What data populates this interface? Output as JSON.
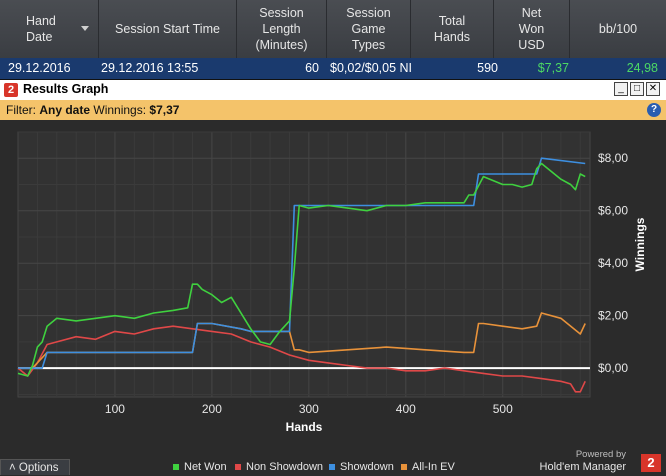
{
  "table": {
    "columns": [
      {
        "label": "Hand\nDate",
        "text": "Hand Date"
      },
      {
        "label": "Session Start Time"
      },
      {
        "label": "Session Length (Minutes)"
      },
      {
        "label": "Session Game Types"
      },
      {
        "label": "Total Hands"
      },
      {
        "label": "Net Won USD"
      },
      {
        "label": "bb/100"
      }
    ],
    "row": {
      "hand_date": "29.12.2016",
      "session_start": "29.12.2016 13:55",
      "session_length": "60",
      "game_types": "$0,02/$0,05 NI",
      "total_hands": "590",
      "net_won": "$7,37",
      "bb100": "24,98"
    }
  },
  "window": {
    "badge": "2",
    "title": "Results Graph",
    "btn_min": "_",
    "btn_max": "□",
    "btn_close": "✕"
  },
  "filter": {
    "label": "Filter:",
    "date_value": "Any date",
    "winnings_label": "Winnings:",
    "winnings_value": "$7,37",
    "help": "?"
  },
  "options_label": "Options",
  "powered": {
    "line1": "Powered by",
    "line2": "Hold'em Manager",
    "logo": "2"
  },
  "colors": {
    "net_won": "#3fd13f",
    "non_showdown": "#e04848",
    "showdown": "#3d8fe0",
    "all_in_ev": "#e8923a"
  },
  "chart_data": {
    "type": "line",
    "xlabel": "Hands",
    "ylabel": "Winnings",
    "xticks": [
      100,
      200,
      300,
      400,
      500
    ],
    "yticks": [
      "$0,00",
      "$2,00",
      "$4,00",
      "$6,00",
      "$8,00"
    ],
    "xlim": [
      0,
      590
    ],
    "ylim": [
      -1.1,
      9.0
    ],
    "grid": true,
    "legend_position": "bottom",
    "series": [
      {
        "name": "Net Won",
        "color": "#3fd13f",
        "x": [
          0,
          10,
          15,
          20,
          25,
          30,
          40,
          60,
          80,
          100,
          120,
          140,
          160,
          175,
          180,
          185,
          190,
          200,
          210,
          220,
          240,
          250,
          260,
          270,
          280,
          285,
          290,
          300,
          320,
          340,
          360,
          380,
          400,
          420,
          440,
          460,
          465,
          470,
          480,
          500,
          510,
          520,
          530,
          535,
          540,
          550,
          560,
          570,
          575,
          580,
          585
        ],
        "values": [
          -0.2,
          -0.3,
          0.1,
          0.8,
          1.0,
          1.6,
          1.9,
          1.8,
          1.9,
          2.0,
          1.9,
          2.1,
          2.2,
          2.3,
          3.2,
          3.2,
          3.0,
          2.8,
          2.5,
          2.7,
          1.5,
          1.0,
          0.9,
          1.4,
          1.8,
          3.8,
          6.2,
          6.1,
          6.2,
          6.1,
          6.0,
          6.2,
          6.2,
          6.3,
          6.3,
          6.3,
          6.6,
          6.6,
          7.3,
          7.0,
          7.0,
          6.9,
          7.0,
          7.6,
          7.8,
          7.5,
          7.2,
          7.0,
          6.8,
          7.4,
          7.3
        ]
      },
      {
        "name": "Non Showdown",
        "color": "#e04848",
        "x": [
          0,
          10,
          20,
          30,
          40,
          60,
          80,
          100,
          120,
          140,
          160,
          180,
          200,
          220,
          240,
          260,
          280,
          300,
          320,
          340,
          360,
          380,
          400,
          420,
          440,
          460,
          480,
          500,
          520,
          540,
          560,
          570,
          575,
          580,
          585
        ],
        "values": [
          0.0,
          -0.3,
          0.2,
          0.9,
          1.0,
          1.2,
          1.1,
          1.4,
          1.3,
          1.5,
          1.6,
          1.5,
          1.4,
          1.3,
          1.0,
          0.8,
          0.5,
          0.3,
          0.2,
          0.1,
          0.0,
          0.0,
          -0.1,
          -0.1,
          0.0,
          -0.1,
          -0.2,
          -0.3,
          -0.3,
          -0.4,
          -0.5,
          -0.6,
          -0.9,
          -0.9,
          -0.5
        ]
      },
      {
        "name": "Showdown",
        "color": "#3d8fe0",
        "x": [
          0,
          15,
          25,
          30,
          100,
          110,
          180,
          185,
          200,
          230,
          240,
          270,
          280,
          285,
          290,
          470,
          475,
          535,
          540,
          585
        ],
        "values": [
          0.0,
          0.0,
          0.0,
          0.6,
          0.6,
          0.6,
          0.6,
          1.7,
          1.7,
          1.5,
          1.4,
          1.4,
          1.4,
          6.2,
          6.2,
          6.2,
          7.4,
          7.4,
          8.0,
          7.8
        ]
      },
      {
        "name": "All-In EV",
        "color": "#e8923a",
        "x": [
          0,
          15,
          30,
          100,
          180,
          185,
          200,
          230,
          240,
          270,
          280,
          285,
          290,
          300,
          340,
          380,
          420,
          460,
          470,
          475,
          480,
          500,
          520,
          535,
          540,
          560,
          580,
          585
        ],
        "values": [
          0.0,
          0.0,
          0.6,
          0.6,
          0.6,
          1.7,
          1.7,
          1.5,
          1.4,
          1.4,
          1.4,
          0.7,
          0.7,
          0.6,
          0.7,
          0.8,
          0.7,
          0.6,
          0.6,
          1.7,
          1.7,
          1.6,
          1.5,
          1.6,
          2.1,
          1.9,
          1.3,
          1.7
        ]
      }
    ]
  }
}
